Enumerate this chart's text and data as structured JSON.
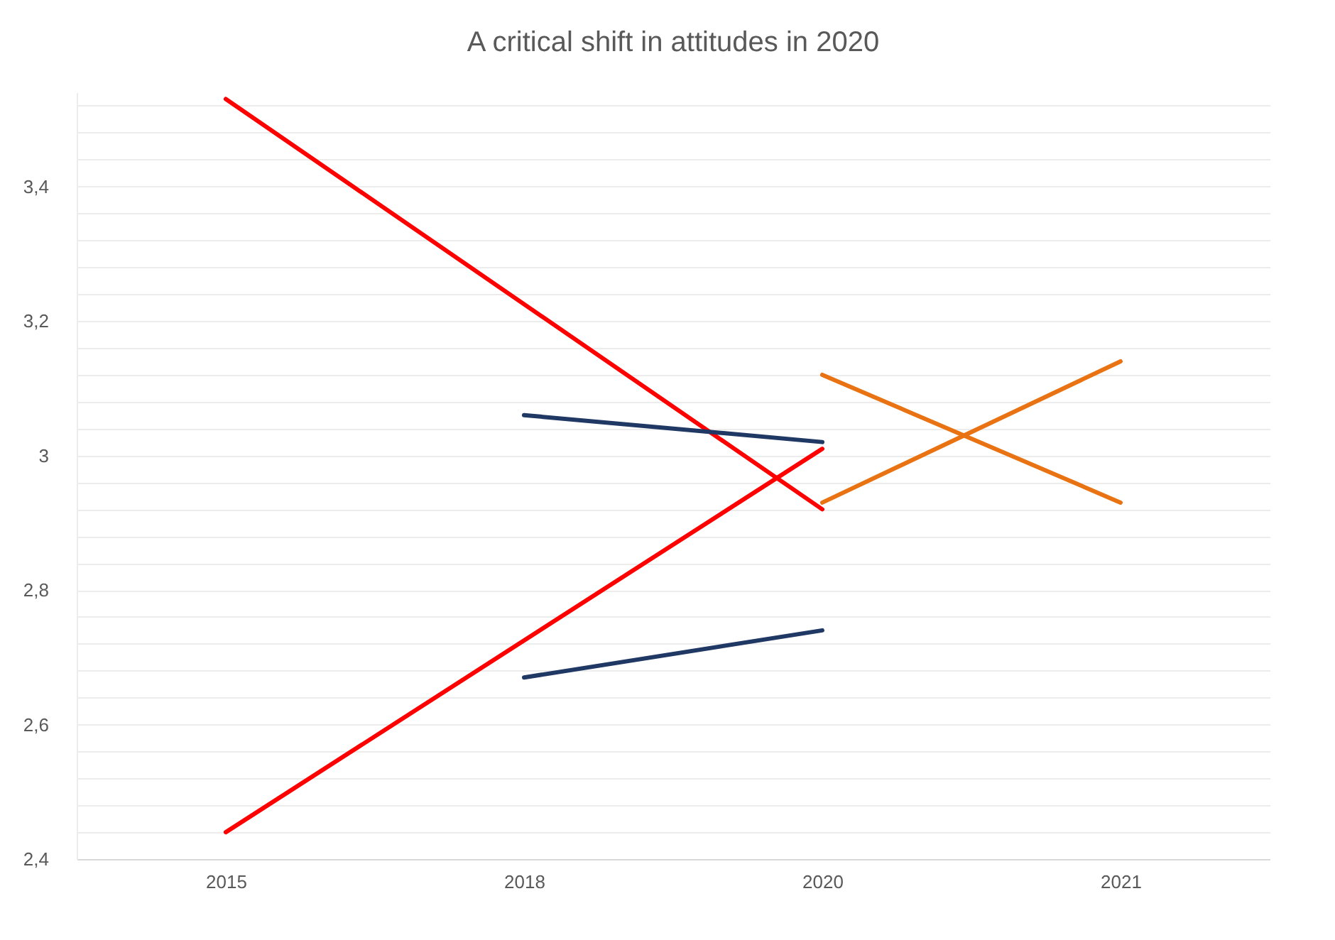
{
  "chart_data": {
    "type": "line",
    "title": "A critical shift in attitudes in 2020",
    "categories": [
      "2015",
      "2018",
      "2020",
      "2021"
    ],
    "series": [
      {
        "color": "#ff0000",
        "values": [
          3.53,
          null,
          2.92,
          null
        ]
      },
      {
        "color": "#ff0000",
        "values": [
          2.44,
          null,
          3.01,
          null
        ]
      },
      {
        "color": "#203864",
        "values": [
          null,
          3.06,
          3.02,
          null
        ]
      },
      {
        "color": "#203864",
        "values": [
          null,
          2.67,
          2.74,
          null
        ]
      },
      {
        "color": "#e97312",
        "values": [
          null,
          null,
          3.12,
          2.93
        ]
      },
      {
        "color": "#e97312",
        "values": [
          null,
          null,
          2.93,
          3.14
        ]
      }
    ],
    "ylim": [
      2.4,
      3.54
    ],
    "yticks": [
      {
        "value": 2.4,
        "label": "2,4"
      },
      {
        "value": 2.44,
        "label": null
      },
      {
        "value": 2.48,
        "label": null
      },
      {
        "value": 2.52,
        "label": null
      },
      {
        "value": 2.56,
        "label": null
      },
      {
        "value": 2.6,
        "label": "2,6"
      },
      {
        "value": 2.64,
        "label": null
      },
      {
        "value": 2.68,
        "label": null
      },
      {
        "value": 2.72,
        "label": null
      },
      {
        "value": 2.76,
        "label": null
      },
      {
        "value": 2.8,
        "label": "2,8"
      },
      {
        "value": 2.84,
        "label": null
      },
      {
        "value": 2.88,
        "label": null
      },
      {
        "value": 2.92,
        "label": null
      },
      {
        "value": 2.96,
        "label": null
      },
      {
        "value": 3.0,
        "label": "3"
      },
      {
        "value": 3.04,
        "label": null
      },
      {
        "value": 3.08,
        "label": null
      },
      {
        "value": 3.12,
        "label": null
      },
      {
        "value": 3.16,
        "label": null
      },
      {
        "value": 3.2,
        "label": "3,2"
      },
      {
        "value": 3.24,
        "label": null
      },
      {
        "value": 3.28,
        "label": null
      },
      {
        "value": 3.32,
        "label": null
      },
      {
        "value": 3.36,
        "label": null
      },
      {
        "value": 3.4,
        "label": "3,4"
      },
      {
        "value": 3.44,
        "label": null
      },
      {
        "value": 3.48,
        "label": null
      },
      {
        "value": 3.52,
        "label": null
      }
    ],
    "grid": "y",
    "legend": false,
    "marker": "none",
    "line_style": "solid"
  }
}
